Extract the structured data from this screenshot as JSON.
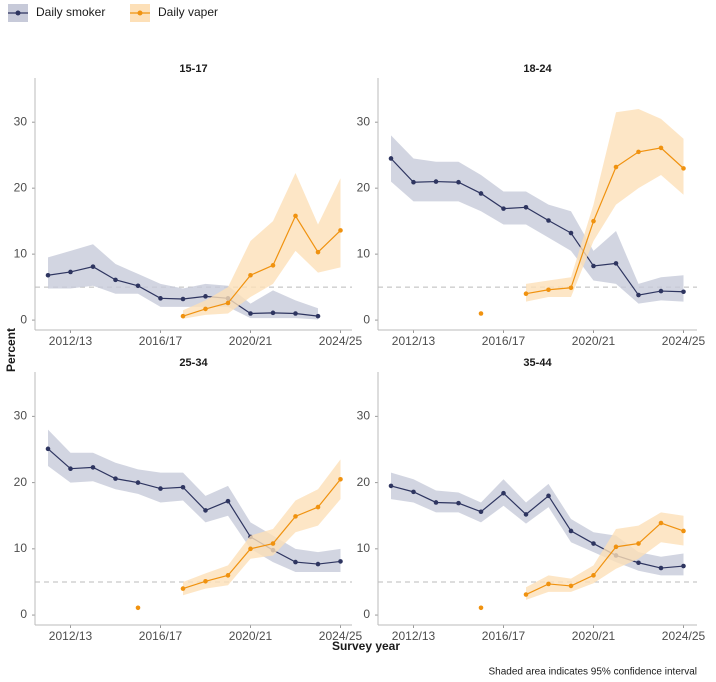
{
  "legend": [
    "Daily smoker",
    "Daily vaper"
  ],
  "x_label": "Survey year",
  "y_label": "Percent",
  "caption": "Shaded area indicates 95% confidence interval",
  "chart_data": [
    {
      "type": "line",
      "title": "15-17",
      "categories": [
        null,
        "2012/13",
        null,
        null,
        null,
        "2016/17",
        null,
        null,
        null,
        "2020/21",
        null,
        null,
        null,
        "2024/25"
      ],
      "ylim": [
        -1.5,
        36.7
      ],
      "yticks": [
        0,
        10,
        20,
        30
      ],
      "reference_line": 5,
      "series": [
        {
          "name": "Daily smoker",
          "color": "#2e3560",
          "band_color": "#c7cad9",
          "values": [
            6.8,
            7.3,
            8.1,
            6.1,
            5.2,
            3.3,
            3.2,
            3.6,
            3.3,
            1.0,
            1.1,
            1.0,
            0.6,
            null
          ],
          "lower": [
            4.8,
            4.8,
            5.2,
            4.0,
            4.0,
            2.0,
            2.0,
            2.0,
            2.0,
            0.3,
            0.3,
            0.3,
            0.1,
            null
          ],
          "upper": [
            9.5,
            10.5,
            11.5,
            8.5,
            7.0,
            5.5,
            4.8,
            5.5,
            5.2,
            2.5,
            4.5,
            3.0,
            1.8,
            null
          ]
        },
        {
          "name": "Daily vaper",
          "color": "#f0920f",
          "band_color": "#fde0b8",
          "values": [
            null,
            null,
            null,
            null,
            null,
            null,
            0.6,
            1.7,
            2.6,
            6.8,
            8.3,
            15.8,
            10.3,
            13.6
          ],
          "lower": [
            null,
            null,
            null,
            null,
            null,
            null,
            0.2,
            0.8,
            1.0,
            3.5,
            5.5,
            10.5,
            7.2,
            8.0
          ],
          "upper": [
            null,
            null,
            null,
            null,
            null,
            null,
            1.5,
            3.0,
            5.0,
            12.0,
            15.0,
            22.3,
            14.5,
            21.5
          ]
        }
      ]
    },
    {
      "type": "line",
      "title": "18-24",
      "categories": [
        null,
        "2012/13",
        null,
        null,
        null,
        "2016/17",
        null,
        null,
        null,
        "2020/21",
        null,
        null,
        null,
        "2024/25"
      ],
      "ylim": [
        -1.5,
        36.7
      ],
      "yticks": [
        0,
        10,
        20,
        30
      ],
      "reference_line": 5,
      "series": [
        {
          "name": "Daily smoker",
          "color": "#2e3560",
          "band_color": "#c7cad9",
          "values": [
            24.5,
            20.9,
            21.0,
            20.9,
            19.2,
            16.9,
            17.1,
            15.1,
            13.2,
            8.2,
            8.6,
            3.8,
            4.4,
            4.3
          ],
          "lower": [
            21.0,
            18.0,
            18.0,
            18.0,
            16.5,
            14.5,
            14.5,
            12.5,
            10.5,
            6.0,
            5.5,
            2.5,
            3.0,
            2.8
          ],
          "upper": [
            28.0,
            24.5,
            24.0,
            24.0,
            22.0,
            19.5,
            19.5,
            17.5,
            16.5,
            10.5,
            13.5,
            5.5,
            6.5,
            6.8
          ]
        },
        {
          "name": "Daily vaper",
          "color": "#f0920f",
          "band_color": "#fde0b8",
          "values": [
            null,
            null,
            null,
            null,
            1.0,
            null,
            4.0,
            4.6,
            4.9,
            15.0,
            23.2,
            25.5,
            26.1,
            23.0
          ],
          "lower": [
            null,
            null,
            null,
            null,
            0.3,
            null,
            2.8,
            3.5,
            3.5,
            12.0,
            17.5,
            20.0,
            22.0,
            19.0
          ],
          "upper": [
            null,
            null,
            null,
            null,
            2.5,
            null,
            5.5,
            6.0,
            6.5,
            17.5,
            31.5,
            32.0,
            30.5,
            27.5
          ]
        }
      ]
    },
    {
      "type": "line",
      "title": "25-34",
      "categories": [
        null,
        "2012/13",
        null,
        null,
        null,
        "2016/17",
        null,
        null,
        null,
        "2020/21",
        null,
        null,
        null,
        "2024/25"
      ],
      "ylim": [
        -1.5,
        36.7
      ],
      "yticks": [
        0,
        10,
        20,
        30
      ],
      "reference_line": 5,
      "series": [
        {
          "name": "Daily smoker",
          "color": "#2e3560",
          "band_color": "#c7cad9",
          "values": [
            25.1,
            22.1,
            22.3,
            20.6,
            20.0,
            19.1,
            19.3,
            15.8,
            17.2,
            11.8,
            9.8,
            8.0,
            7.7,
            8.1
          ],
          "lower": [
            22.5,
            20.0,
            20.2,
            19.0,
            18.3,
            17.0,
            17.3,
            14.0,
            15.0,
            10.0,
            8.0,
            6.5,
            6.5,
            6.5
          ],
          "upper": [
            28.0,
            24.5,
            24.5,
            23.0,
            22.0,
            21.5,
            21.5,
            18.0,
            19.5,
            14.0,
            12.0,
            10.0,
            9.5,
            10.0
          ]
        },
        {
          "name": "Daily vaper",
          "color": "#f0920f",
          "band_color": "#fde0b8",
          "values": [
            null,
            null,
            null,
            null,
            1.1,
            null,
            4.0,
            5.1,
            6.0,
            10.0,
            10.8,
            14.9,
            16.3,
            20.5
          ],
          "lower": [
            null,
            null,
            null,
            null,
            0.5,
            null,
            3.0,
            4.0,
            4.5,
            8.5,
            9.0,
            12.5,
            13.5,
            17.5
          ],
          "upper": [
            null,
            null,
            null,
            null,
            1.8,
            null,
            5.0,
            6.3,
            7.5,
            12.0,
            13.0,
            17.3,
            19.0,
            23.5
          ]
        }
      ]
    },
    {
      "type": "line",
      "title": "35-44",
      "categories": [
        null,
        "2012/13",
        null,
        null,
        null,
        "2016/17",
        null,
        null,
        null,
        "2020/21",
        null,
        null,
        null,
        "2024/25"
      ],
      "ylim": [
        -1.5,
        36.7
      ],
      "yticks": [
        0,
        10,
        20,
        30
      ],
      "reference_line": 5,
      "series": [
        {
          "name": "Daily smoker",
          "color": "#2e3560",
          "band_color": "#c7cad9",
          "values": [
            19.5,
            18.6,
            17.0,
            16.9,
            15.6,
            18.4,
            15.2,
            18.0,
            12.7,
            10.8,
            9.0,
            7.9,
            7.1,
            7.4
          ],
          "lower": [
            17.5,
            17.0,
            15.5,
            15.5,
            14.0,
            16.5,
            13.8,
            16.3,
            11.0,
            9.5,
            8.0,
            6.7,
            6.0,
            6.0
          ],
          "upper": [
            21.5,
            20.5,
            18.8,
            18.5,
            17.0,
            20.5,
            17.0,
            19.8,
            14.5,
            12.5,
            12.0,
            9.5,
            8.8,
            9.3
          ]
        },
        {
          "name": "Daily vaper",
          "color": "#f0920f",
          "band_color": "#fde0b8",
          "values": [
            null,
            null,
            null,
            null,
            1.1,
            null,
            3.1,
            4.7,
            4.4,
            6.0,
            10.3,
            10.8,
            13.9,
            12.7
          ],
          "lower": [
            null,
            null,
            null,
            null,
            0.5,
            null,
            2.3,
            3.5,
            3.5,
            4.8,
            7.0,
            8.5,
            11.0,
            10.5
          ],
          "upper": [
            null,
            null,
            null,
            null,
            1.8,
            null,
            4.2,
            6.0,
            5.5,
            7.5,
            13.0,
            13.5,
            15.5,
            15.0
          ]
        }
      ]
    }
  ]
}
